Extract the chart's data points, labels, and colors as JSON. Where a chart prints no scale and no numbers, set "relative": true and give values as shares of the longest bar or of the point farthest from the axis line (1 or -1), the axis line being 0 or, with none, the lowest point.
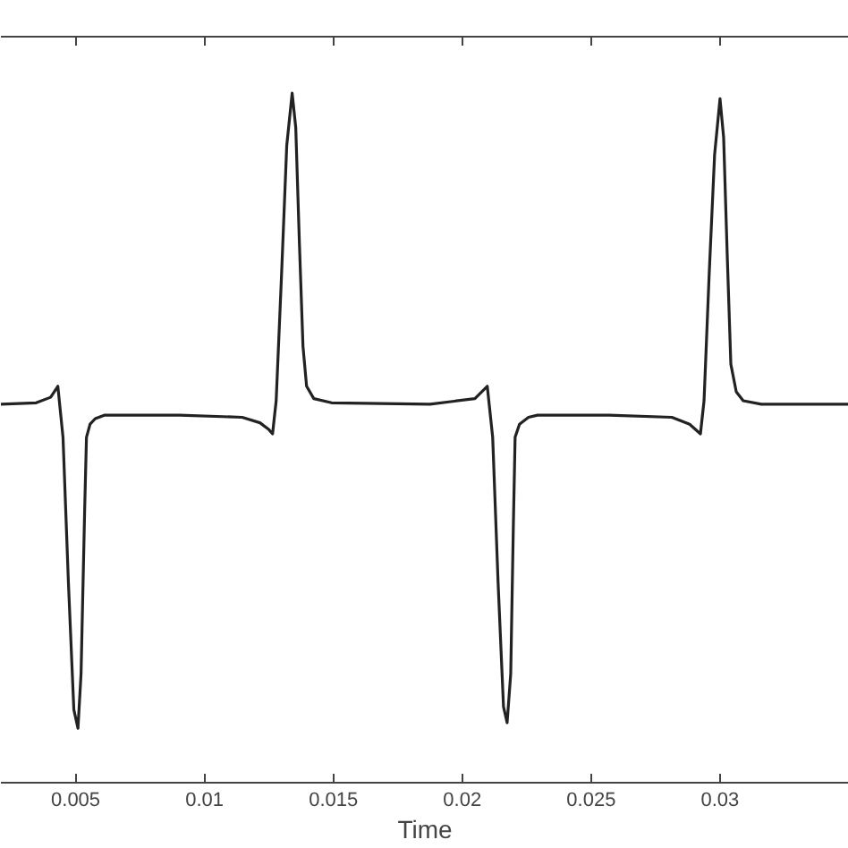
{
  "chart_data": {
    "type": "line",
    "relative": true,
    "xlabel": "Time",
    "xlim": [
      0.0021,
      0.035
    ],
    "xticks": [
      0.005,
      0.01,
      0.015,
      0.02,
      0.025,
      0.03
    ],
    "grid": false,
    "marker": "none",
    "line_style": "solid",
    "series": [
      {
        "color": "#222222",
        "x": [
          0.0021,
          0.00347,
          0.00403,
          0.00431,
          0.00451,
          0.00472,
          0.00493,
          0.00509,
          0.00521,
          0.00535,
          0.00542,
          0.00556,
          0.00576,
          0.00611,
          0.00903,
          0.01146,
          0.01215,
          0.0125,
          0.01264,
          0.01278,
          0.01299,
          0.01319,
          0.0134,
          0.01354,
          0.01368,
          0.01382,
          0.01396,
          0.01424,
          0.01493,
          0.01875,
          0.02049,
          0.02097,
          0.02118,
          0.02139,
          0.0216,
          0.02174,
          0.02188,
          0.02198,
          0.02205,
          0.02222,
          0.02257,
          0.02292,
          0.02569,
          0.02813,
          0.02882,
          0.02924,
          0.02938,
          0.02958,
          0.02979,
          0.03,
          0.03014,
          0.03028,
          0.03042,
          0.03063,
          0.0309,
          0.0316,
          0.035
        ],
        "values": [
          0.549,
          0.551,
          0.559,
          0.575,
          0.501,
          0.29,
          0.106,
          0.079,
          0.158,
          0.396,
          0.501,
          0.52,
          0.528,
          0.533,
          0.533,
          0.53,
          0.522,
          0.512,
          0.506,
          0.554,
          0.738,
          0.924,
          1,
          0.95,
          0.784,
          0.633,
          0.575,
          0.557,
          0.551,
          0.549,
          0.557,
          0.575,
          0.501,
          0.29,
          0.11,
          0.087,
          0.158,
          0.369,
          0.501,
          0.52,
          0.53,
          0.533,
          0.533,
          0.53,
          0.52,
          0.506,
          0.554,
          0.738,
          0.911,
          0.992,
          0.936,
          0.765,
          0.607,
          0.567,
          0.554,
          0.549,
          0.549
        ]
      }
    ]
  }
}
